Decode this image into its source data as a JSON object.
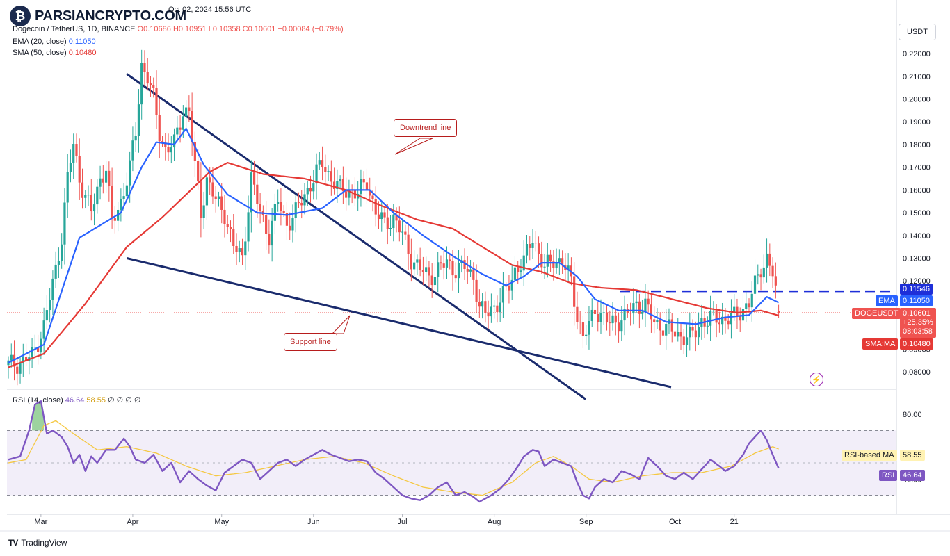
{
  "brand": {
    "logo": "₿",
    "text": "PARSIANCRYPTO.COM"
  },
  "header": {
    "publish_line": "Oct 02, 2024 15:56 UTC",
    "symbol_line": "Dogecoin / TetherUS, 1D, BINANCE",
    "ohlc": {
      "o": "O0.10686",
      "h": "H0.10951",
      "l": "L0.10358",
      "c": "C0.10601",
      "chg": "−0.00084 (−0.79%)"
    },
    "ema_label": "EMA (20, close)",
    "ema_value": "0.11050",
    "sma_label": "SMA (50, close)",
    "sma_value": "0.10480",
    "rsi_label": "RSI (14, close)",
    "rsi_value": "46.64",
    "rsi_ma_value": "58.55",
    "rsi_extra": "∅ ∅ ∅ ∅"
  },
  "currency_button": "USDT",
  "annotations": {
    "downtrend": "Downtrend line",
    "support": "Support line"
  },
  "price_tags": {
    "resistance": "0.11546",
    "ema_name": "EMA",
    "ema": "0.11050",
    "symbol": "DOGEUSDT",
    "last": "0.10601",
    "change": "+25.35%",
    "countdown": "08:03:58",
    "sma_name": "SMA:MA",
    "sma": "0.10480",
    "rsi_ma_name": "RSI-based MA",
    "rsi_ma": "58.55",
    "rsi_name": "RSI",
    "rsi": "46.64"
  },
  "footer": {
    "logo": "TV",
    "text": "TradingView"
  },
  "colors": {
    "up": "#26a69a",
    "down": "#ef5350",
    "ema": "#2962ff",
    "sma": "#e53935",
    "trend": "#1a2b6d",
    "resistance": "#1e2fd8",
    "rsi": "#7e57c2",
    "rsi_ma": "#f5c842"
  },
  "chart_data": {
    "type": "candlestick",
    "price_axis_ticks": [
      "0.22000",
      "0.21000",
      "0.20000",
      "0.19000",
      "0.18000",
      "0.17000",
      "0.16000",
      "0.15000",
      "0.14000",
      "0.13000",
      "0.12000",
      "0.11000",
      "0.10000",
      "0.09000",
      "0.08000"
    ],
    "ylim": [
      0.073,
      0.235
    ],
    "x_labels": [
      "Mar",
      "Apr",
      "May",
      "Jun",
      "Jul",
      "Aug",
      "Sep",
      "Oct",
      "21"
    ],
    "rsi_axis_ticks": [
      "80.00",
      "40.00"
    ],
    "rsi_bands": [
      70,
      30
    ],
    "rsi_ylim": [
      20,
      92
    ],
    "price_anchors": [
      [
        0,
        0.083
      ],
      [
        4,
        0.084
      ],
      [
        8,
        0.087
      ],
      [
        12,
        0.1
      ],
      [
        16,
        0.125
      ],
      [
        18,
        0.14
      ],
      [
        20,
        0.165
      ],
      [
        22,
        0.18
      ],
      [
        24,
        0.165
      ],
      [
        28,
        0.15
      ],
      [
        31,
        0.165
      ],
      [
        33,
        0.17
      ],
      [
        35,
        0.145
      ],
      [
        38,
        0.155
      ],
      [
        41,
        0.17
      ],
      [
        43,
        0.185
      ],
      [
        45,
        0.215
      ],
      [
        47,
        0.21
      ],
      [
        49,
        0.2
      ],
      [
        51,
        0.185
      ],
      [
        53,
        0.178
      ],
      [
        56,
        0.18
      ],
      [
        59,
        0.195
      ],
      [
        61,
        0.195
      ],
      [
        63,
        0.17
      ],
      [
        65,
        0.15
      ],
      [
        67,
        0.165
      ],
      [
        70,
        0.155
      ],
      [
        73,
        0.15
      ],
      [
        76,
        0.135
      ],
      [
        79,
        0.13
      ],
      [
        82,
        0.165
      ],
      [
        85,
        0.15
      ],
      [
        88,
        0.14
      ],
      [
        91,
        0.155
      ],
      [
        94,
        0.145
      ],
      [
        97,
        0.15
      ],
      [
        100,
        0.158
      ],
      [
        103,
        0.165
      ],
      [
        106,
        0.172
      ],
      [
        109,
        0.165
      ],
      [
        112,
        0.16
      ],
      [
        115,
        0.16
      ],
      [
        118,
        0.158
      ],
      [
        121,
        0.164
      ],
      [
        124,
        0.15
      ],
      [
        127,
        0.145
      ],
      [
        130,
        0.148
      ],
      [
        133,
        0.14
      ],
      [
        136,
        0.13
      ],
      [
        139,
        0.125
      ],
      [
        142,
        0.122
      ],
      [
        145,
        0.125
      ],
      [
        148,
        0.128
      ],
      [
        151,
        0.125
      ],
      [
        154,
        0.126
      ],
      [
        157,
        0.122
      ],
      [
        159,
        0.108
      ],
      [
        161,
        0.105
      ],
      [
        163,
        0.108
      ],
      [
        165,
        0.11
      ],
      [
        168,
        0.115
      ],
      [
        171,
        0.125
      ],
      [
        174,
        0.128
      ],
      [
        177,
        0.14
      ],
      [
        179,
        0.132
      ],
      [
        181,
        0.125
      ],
      [
        184,
        0.13
      ],
      [
        187,
        0.128
      ],
      [
        190,
        0.12
      ],
      [
        192,
        0.105
      ],
      [
        194,
        0.095
      ],
      [
        196,
        0.1
      ],
      [
        198,
        0.108
      ],
      [
        200,
        0.105
      ],
      [
        203,
        0.101
      ],
      [
        206,
        0.103
      ],
      [
        209,
        0.105
      ],
      [
        212,
        0.11
      ],
      [
        215,
        0.109
      ],
      [
        218,
        0.102
      ],
      [
        221,
        0.1
      ],
      [
        224,
        0.098
      ],
      [
        227,
        0.096
      ],
      [
        230,
        0.095
      ],
      [
        232,
        0.098
      ],
      [
        234,
        0.103
      ],
      [
        236,
        0.102
      ],
      [
        239,
        0.104
      ],
      [
        242,
        0.103
      ],
      [
        245,
        0.104
      ],
      [
        248,
        0.108
      ],
      [
        250,
        0.11
      ],
      [
        252,
        0.118
      ],
      [
        254,
        0.126
      ],
      [
        256,
        0.13
      ],
      [
        258,
        0.123
      ],
      [
        259,
        0.115
      ],
      [
        260,
        0.1068
      ]
    ],
    "last_candle": {
      "open": 0.10686,
      "high": 0.10951,
      "low": 0.10358,
      "close": 0.10601
    },
    "ema_anchors": [
      [
        0,
        0.084
      ],
      [
        12,
        0.092
      ],
      [
        24,
        0.139
      ],
      [
        38,
        0.15
      ],
      [
        45,
        0.17
      ],
      [
        50,
        0.181
      ],
      [
        56,
        0.18
      ],
      [
        60,
        0.187
      ],
      [
        66,
        0.171
      ],
      [
        74,
        0.158
      ],
      [
        84,
        0.15
      ],
      [
        94,
        0.149
      ],
      [
        106,
        0.152
      ],
      [
        114,
        0.16
      ],
      [
        122,
        0.16
      ],
      [
        130,
        0.15
      ],
      [
        140,
        0.14
      ],
      [
        150,
        0.131
      ],
      [
        160,
        0.123
      ],
      [
        168,
        0.118
      ],
      [
        174,
        0.122
      ],
      [
        180,
        0.128
      ],
      [
        186,
        0.128
      ],
      [
        192,
        0.122
      ],
      [
        198,
        0.112
      ],
      [
        206,
        0.107
      ],
      [
        214,
        0.107
      ],
      [
        222,
        0.102
      ],
      [
        232,
        0.101
      ],
      [
        242,
        0.104
      ],
      [
        250,
        0.105
      ],
      [
        256,
        0.113
      ],
      [
        260,
        0.1105
      ]
    ],
    "sma_anchors": [
      [
        0,
        0.082
      ],
      [
        12,
        0.088
      ],
      [
        26,
        0.11
      ],
      [
        40,
        0.135
      ],
      [
        52,
        0.148
      ],
      [
        60,
        0.158
      ],
      [
        68,
        0.168
      ],
      [
        74,
        0.172
      ],
      [
        86,
        0.167
      ],
      [
        100,
        0.165
      ],
      [
        114,
        0.16
      ],
      [
        126,
        0.153
      ],
      [
        138,
        0.147
      ],
      [
        150,
        0.143
      ],
      [
        160,
        0.135
      ],
      [
        170,
        0.127
      ],
      [
        180,
        0.124
      ],
      [
        190,
        0.119
      ],
      [
        200,
        0.117
      ],
      [
        212,
        0.116
      ],
      [
        224,
        0.112
      ],
      [
        236,
        0.108
      ],
      [
        246,
        0.106
      ],
      [
        254,
        0.107
      ],
      [
        260,
        0.1048
      ]
    ],
    "rsi_anchors": [
      [
        0,
        52
      ],
      [
        4,
        54
      ],
      [
        7,
        70
      ],
      [
        9,
        86
      ],
      [
        11,
        88
      ],
      [
        13,
        68
      ],
      [
        15,
        70
      ],
      [
        18,
        66
      ],
      [
        20,
        60
      ],
      [
        22,
        50
      ],
      [
        24,
        55
      ],
      [
        26,
        45
      ],
      [
        28,
        54
      ],
      [
        30,
        50
      ],
      [
        33,
        58
      ],
      [
        36,
        58
      ],
      [
        39,
        65
      ],
      [
        41,
        60
      ],
      [
        43,
        52
      ],
      [
        46,
        50
      ],
      [
        49,
        55
      ],
      [
        52,
        45
      ],
      [
        55,
        50
      ],
      [
        58,
        38
      ],
      [
        61,
        45
      ],
      [
        64,
        40
      ],
      [
        67,
        36
      ],
      [
        70,
        33
      ],
      [
        73,
        44
      ],
      [
        76,
        48
      ],
      [
        79,
        52
      ],
      [
        82,
        50
      ],
      [
        85,
        40
      ],
      [
        88,
        45
      ],
      [
        91,
        50
      ],
      [
        94,
        52
      ],
      [
        97,
        48
      ],
      [
        100,
        52
      ],
      [
        103,
        55
      ],
      [
        106,
        58
      ],
      [
        109,
        55
      ],
      [
        112,
        53
      ],
      [
        115,
        51
      ],
      [
        118,
        52
      ],
      [
        121,
        51
      ],
      [
        124,
        44
      ],
      [
        127,
        40
      ],
      [
        130,
        35
      ],
      [
        133,
        30
      ],
      [
        136,
        28
      ],
      [
        139,
        27
      ],
      [
        142,
        30
      ],
      [
        145,
        35
      ],
      [
        148,
        38
      ],
      [
        151,
        30
      ],
      [
        154,
        32
      ],
      [
        157,
        29
      ],
      [
        159,
        26
      ],
      [
        161,
        28
      ],
      [
        163,
        30
      ],
      [
        166,
        34
      ],
      [
        169,
        40
      ],
      [
        172,
        48
      ],
      [
        174,
        54
      ],
      [
        177,
        58
      ],
      [
        179,
        57
      ],
      [
        181,
        48
      ],
      [
        184,
        52
      ],
      [
        187,
        50
      ],
      [
        190,
        48
      ],
      [
        192,
        38
      ],
      [
        194,
        30
      ],
      [
        196,
        28
      ],
      [
        198,
        35
      ],
      [
        201,
        40
      ],
      [
        204,
        38
      ],
      [
        207,
        45
      ],
      [
        210,
        43
      ],
      [
        213,
        40
      ],
      [
        216,
        53
      ],
      [
        219,
        48
      ],
      [
        222,
        42
      ],
      [
        225,
        40
      ],
      [
        228,
        44
      ],
      [
        231,
        40
      ],
      [
        234,
        46
      ],
      [
        237,
        52
      ],
      [
        240,
        48
      ],
      [
        242,
        45
      ],
      [
        245,
        48
      ],
      [
        248,
        55
      ],
      [
        250,
        62
      ],
      [
        252,
        66
      ],
      [
        254,
        70
      ],
      [
        256,
        64
      ],
      [
        258,
        55
      ],
      [
        260,
        46.6
      ]
    ],
    "rsi_ma_anchors": [
      [
        0,
        50
      ],
      [
        6,
        52
      ],
      [
        12,
        73
      ],
      [
        16,
        76
      ],
      [
        22,
        68
      ],
      [
        30,
        58
      ],
      [
        40,
        60
      ],
      [
        50,
        56
      ],
      [
        60,
        48
      ],
      [
        70,
        42
      ],
      [
        80,
        44
      ],
      [
        90,
        48
      ],
      [
        100,
        52
      ],
      [
        110,
        54
      ],
      [
        120,
        50
      ],
      [
        130,
        42
      ],
      [
        140,
        35
      ],
      [
        150,
        32
      ],
      [
        160,
        30
      ],
      [
        170,
        38
      ],
      [
        178,
        50
      ],
      [
        184,
        54
      ],
      [
        190,
        48
      ],
      [
        196,
        40
      ],
      [
        204,
        38
      ],
      [
        214,
        42
      ],
      [
        224,
        44
      ],
      [
        234,
        44
      ],
      [
        244,
        48
      ],
      [
        252,
        56
      ],
      [
        258,
        60
      ],
      [
        260,
        58.55
      ]
    ],
    "downtrend_line": {
      "from": [
        40,
        0.211
      ],
      "to": [
        162,
        0.091
      ]
    },
    "support_line": {
      "from": [
        40,
        0.13
      ],
      "to": [
        162,
        0.072
      ]
    },
    "resistance_line": 0.11546
  }
}
